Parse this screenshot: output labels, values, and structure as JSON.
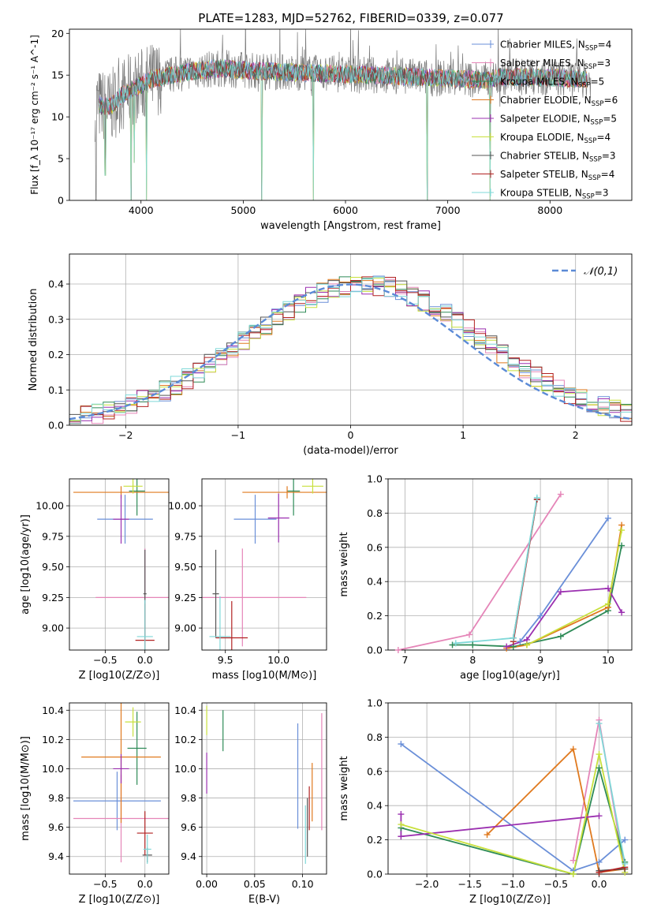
{
  "figure": {
    "title": "PLATE=1283, MJD=52762, FIBERID=0339, z=0.077"
  },
  "models": [
    {
      "name": "Chabrier MILES, N_SSP=4",
      "color": "#6a8fd8"
    },
    {
      "name": "Salpeter MILES, N_SSP=3",
      "color": "#e585b8"
    },
    {
      "name": "Kroupa MILES, N_SSP=5",
      "color": "#2e8b57"
    },
    {
      "name": "Chabrier ELODIE, N_SSP=6",
      "color": "#e07a1f"
    },
    {
      "name": "Salpeter ELODIE, N_SSP=5",
      "color": "#9b30b0"
    },
    {
      "name": "Kroupa ELODIE, N_SSP=4",
      "color": "#c8e03c"
    },
    {
      "name": "Chabrier STELIB, N_SSP=3",
      "color": "#555555"
    },
    {
      "name": "Salpeter STELIB, N_SSP=4",
      "color": "#b22222"
    },
    {
      "name": "Kroupa STELIB, N_SSP=3",
      "color": "#7fd8d8"
    }
  ],
  "chart_data": [
    {
      "id": "spectrum",
      "type": "line",
      "xlabel": "wavelength [Angstrom, rest frame]",
      "ylabel": "Flux [f_λ 10^-17 erg cm^-2 s^-1 A^-1]",
      "xlim": [
        3300,
        8800
      ],
      "ylim": [
        0,
        20.5
      ],
      "xticks": [
        4000,
        5000,
        6000,
        7000,
        8000
      ],
      "yticks": [
        0,
        5,
        10,
        15,
        20
      ],
      "legend": "top-right",
      "continuum": [
        [
          3550,
          11.5
        ],
        [
          3700,
          11.2
        ],
        [
          3800,
          12.5
        ],
        [
          3900,
          13.2
        ],
        [
          4000,
          13.8
        ],
        [
          4100,
          14.5
        ],
        [
          4300,
          15.0
        ],
        [
          4500,
          15.5
        ],
        [
          4800,
          15.8
        ],
        [
          5000,
          15.6
        ],
        [
          5500,
          15.3
        ],
        [
          6000,
          15.1
        ],
        [
          6500,
          14.9
        ],
        [
          7000,
          14.6
        ],
        [
          7400,
          14.4
        ],
        [
          7500,
          14.8
        ],
        [
          8000,
          14.7
        ],
        [
          8400,
          14.5
        ]
      ],
      "absorption_features": [
        [
          3560,
          0
        ],
        [
          3650,
          3.0
        ],
        [
          3905,
          0
        ],
        [
          3935,
          4.5
        ],
        [
          4055,
          0
        ],
        [
          5180,
          0
        ],
        [
          5685,
          0
        ],
        [
          6800,
          0
        ],
        [
          7415,
          0
        ]
      ]
    },
    {
      "id": "residuals",
      "type": "step",
      "xlabel": "(data-model)/error",
      "ylabel": "Normed distribution",
      "xlim": [
        -2.5,
        2.5
      ],
      "ylim": [
        0,
        0.485
      ],
      "xticks": [
        -2,
        -1,
        0,
        1,
        2
      ],
      "yticks": [
        0.0,
        0.1,
        0.2,
        0.3,
        0.4
      ],
      "legend_entry": "𝒩(0,1)",
      "bin_width": 0.1,
      "bin_start": -2.5
    },
    {
      "id": "age_vs_Z",
      "type": "errorbar",
      "xlabel": "Z [log10(Z/Z⊙)]",
      "ylabel": "age  [log10(age/yr)]",
      "xlim": [
        -0.95,
        0.3
      ],
      "ylim": [
        8.82,
        10.22
      ],
      "xticks": [
        -0.5,
        0.0
      ],
      "yticks": [
        9.0,
        9.25,
        9.5,
        9.75,
        10.0
      ],
      "points": [
        {
          "model": 0,
          "x": -0.25,
          "xerr": 0.35,
          "y": 9.89,
          "yerr": 0.2
        },
        {
          "model": 1,
          "x": 0.0,
          "xerr": 0.62,
          "y": 9.25,
          "yerr": 0.4
        },
        {
          "model": 2,
          "x": -0.1,
          "xerr": 0.1,
          "y": 10.12,
          "yerr": 0.2
        },
        {
          "model": 3,
          "x": -0.3,
          "xerr": 0.6,
          "y": 10.11,
          "yerr": 0.05
        },
        {
          "model": 4,
          "x": -0.3,
          "xerr": 0.1,
          "y": 9.89,
          "yerr": 0.2
        },
        {
          "model": 5,
          "x": -0.15,
          "xerr": 0.12,
          "y": 10.16,
          "yerr": 0.06
        },
        {
          "model": 6,
          "x": 0.0,
          "xerr": 0.02,
          "y": 9.28,
          "yerr": 0.36
        },
        {
          "model": 7,
          "x": 0.0,
          "xerr": 0.12,
          "y": 8.9,
          "yerr": 0.3
        },
        {
          "model": 8,
          "x": 0.0,
          "xerr": 0.1,
          "y": 8.93,
          "yerr": 0.3
        }
      ]
    },
    {
      "id": "age_vs_mass",
      "type": "errorbar",
      "xlabel": "mass [log10(M/M⊙)]",
      "ylabel": "",
      "xlim": [
        9.28,
        10.45
      ],
      "ylim": [
        8.82,
        10.22
      ],
      "xticks": [
        9.5,
        10.0
      ],
      "yticks": [
        9.0,
        9.25,
        9.5,
        9.75,
        10.0
      ],
      "points": [
        {
          "model": 0,
          "x": 9.78,
          "xerr": 0.2,
          "y": 9.89,
          "yerr": 0.2
        },
        {
          "model": 1,
          "x": 9.66,
          "xerr": 0.6,
          "y": 9.25,
          "yerr": 0.4
        },
        {
          "model": 2,
          "x": 10.14,
          "xerr": 0.06,
          "y": 10.12,
          "yerr": 0.2
        },
        {
          "model": 3,
          "x": 10.08,
          "xerr": 0.42,
          "y": 10.11,
          "yerr": 0.05
        },
        {
          "model": 4,
          "x": 10.0,
          "xerr": 0.1,
          "y": 9.9,
          "yerr": 0.2
        },
        {
          "model": 5,
          "x": 10.32,
          "xerr": 0.1,
          "y": 10.16,
          "yerr": 0.06
        },
        {
          "model": 6,
          "x": 9.41,
          "xerr": 0.03,
          "y": 9.28,
          "yerr": 0.36
        },
        {
          "model": 7,
          "x": 9.56,
          "xerr": 0.15,
          "y": 8.92,
          "yerr": 0.3
        },
        {
          "model": 8,
          "x": 9.45,
          "xerr": 0.1,
          "y": 8.93,
          "yerr": 0.33
        }
      ]
    },
    {
      "id": "weight_vs_age",
      "type": "line",
      "xlabel": "age  [log10(age/yr)]",
      "ylabel": "mass weight",
      "xlim": [
        6.75,
        10.35
      ],
      "ylim": [
        0,
        1.0
      ],
      "xticks": [
        7,
        8,
        9,
        10
      ],
      "yticks": [
        0.0,
        0.2,
        0.4,
        0.6,
        0.8,
        1.0
      ],
      "series": [
        {
          "model": 0,
          "x": [
            8.7,
            9.0,
            10.0
          ],
          "y": [
            0.05,
            0.2,
            0.77
          ]
        },
        {
          "model": 1,
          "x": [
            6.9,
            7.95,
            9.3
          ],
          "y": [
            0.0,
            0.09,
            0.91
          ]
        },
        {
          "model": 2,
          "x": [
            7.7,
            8.0,
            8.6,
            9.3,
            10.0,
            10.2
          ],
          "y": [
            0.03,
            0.03,
            0.02,
            0.08,
            0.23,
            0.61
          ]
        },
        {
          "model": 3,
          "x": [
            8.5,
            8.8,
            10.0,
            10.2
          ],
          "y": [
            0.01,
            0.03,
            0.25,
            0.73
          ]
        },
        {
          "model": 4,
          "x": [
            8.5,
            8.8,
            9.3,
            10.0,
            10.2
          ],
          "y": [
            0.02,
            0.06,
            0.34,
            0.36,
            0.22
          ]
        },
        {
          "model": 5,
          "x": [
            8.8,
            10.0,
            10.2
          ],
          "y": [
            0.03,
            0.27,
            0.7
          ]
        },
        {
          "model": 6,
          "x": [
            8.6,
            8.95
          ],
          "y": [
            0.07,
            0.88
          ]
        },
        {
          "model": 7,
          "x": [
            8.6,
            8.95
          ],
          "y": [
            0.05,
            0.88
          ]
        },
        {
          "model": 8,
          "x": [
            7.75,
            8.6,
            8.95
          ],
          "y": [
            0.04,
            0.07,
            0.89
          ]
        }
      ]
    },
    {
      "id": "mass_vs_Z",
      "type": "errorbar",
      "xlabel": "Z [log10(Z/Z⊙)]",
      "ylabel": "mass [log10(M/M⊙)]",
      "xlim": [
        -0.95,
        0.3
      ],
      "ylim": [
        9.28,
        10.45
      ],
      "xticks": [
        -0.5,
        0.0
      ],
      "yticks": [
        9.4,
        9.6,
        9.8,
        10.0,
        10.2,
        10.4
      ],
      "points": [
        {
          "model": 0,
          "x": -0.35,
          "xerr": 0.55,
          "y": 9.78,
          "yerr": 0.2
        },
        {
          "model": 1,
          "x": -0.3,
          "xerr": 0.6,
          "y": 9.66,
          "yerr": 0.3
        },
        {
          "model": 2,
          "x": -0.1,
          "xerr": 0.12,
          "y": 10.14,
          "yerr": 0.25
        },
        {
          "model": 3,
          "x": -0.3,
          "xerr": 0.5,
          "y": 10.08,
          "yerr": 0.45
        },
        {
          "model": 4,
          "x": -0.3,
          "xerr": 0.1,
          "y": 10.0,
          "yerr": 0.1
        },
        {
          "model": 5,
          "x": -0.15,
          "xerr": 0.1,
          "y": 10.32,
          "yerr": 0.1
        },
        {
          "model": 6,
          "x": 0.03,
          "xerr": 0.06,
          "y": 9.41,
          "yerr": 0.05
        },
        {
          "model": 7,
          "x": 0.0,
          "xerr": 0.1,
          "y": 9.56,
          "yerr": 0.15
        },
        {
          "model": 8,
          "x": 0.03,
          "xerr": 0.05,
          "y": 9.45,
          "yerr": 0.1
        }
      ]
    },
    {
      "id": "mass_vs_ebv",
      "type": "errorbar",
      "xlabel": "E(B-V)",
      "ylabel": "",
      "xlim": [
        -0.005,
        0.125
      ],
      "ylim": [
        9.28,
        10.45
      ],
      "xticks": [
        0.0,
        0.05,
        0.1
      ],
      "yticks": [
        9.4,
        9.6,
        9.8,
        10.0,
        10.2,
        10.4
      ],
      "points": [
        {
          "model": 0,
          "x": 0.095,
          "xerr": 0,
          "y": 9.95,
          "yerr": 0.36
        },
        {
          "model": 1,
          "x": 0.12,
          "xerr": 0,
          "y": 9.98,
          "yerr": 0.4
        },
        {
          "model": 2,
          "x": 0.017,
          "xerr": 0,
          "y": 10.26,
          "yerr": 0.14
        },
        {
          "model": 3,
          "x": 0.11,
          "xerr": 0,
          "y": 9.84,
          "yerr": 0.2
        },
        {
          "model": 4,
          "x": 0.0,
          "xerr": 0,
          "y": 9.97,
          "yerr": 0.14
        },
        {
          "model": 5,
          "x": 0.0,
          "xerr": 0,
          "y": 10.33,
          "yerr": 0.1
        },
        {
          "model": 6,
          "x": 0.105,
          "xerr": 0,
          "y": 9.6,
          "yerr": 0.2
        },
        {
          "model": 7,
          "x": 0.107,
          "xerr": 0,
          "y": 9.73,
          "yerr": 0.15
        },
        {
          "model": 8,
          "x": 0.103,
          "xerr": 0,
          "y": 9.55,
          "yerr": 0.2
        }
      ]
    },
    {
      "id": "weight_vs_Z",
      "type": "line",
      "xlabel": "Z [log10(Z/Z⊙)]",
      "ylabel": "mass weight",
      "xlim": [
        -2.45,
        0.38
      ],
      "ylim": [
        0,
        1.0
      ],
      "xticks": [
        -2.0,
        -1.5,
        -1.0,
        -0.5,
        0.0
      ],
      "yticks": [
        0.0,
        0.2,
        0.4,
        0.6,
        0.8,
        1.0
      ],
      "series": [
        {
          "model": 0,
          "x": [
            -2.3,
            -0.3,
            0.0,
            0.3
          ],
          "y": [
            0.76,
            0.02,
            0.07,
            0.2
          ]
        },
        {
          "model": 1,
          "x": [
            -0.3,
            0.0,
            0.3
          ],
          "y": [
            0.08,
            0.9,
            0.01
          ]
        },
        {
          "model": 2,
          "x": [
            -2.3,
            -0.3,
            0.0,
            0.3
          ],
          "y": [
            0.27,
            0.0,
            0.62,
            0.07
          ]
        },
        {
          "model": 3,
          "x": [
            -1.3,
            -0.3,
            0.0,
            0.3
          ],
          "y": [
            0.23,
            0.73,
            0.01,
            0.03
          ]
        },
        {
          "model": 4,
          "x": [
            -2.3,
            -2.3,
            0.0
          ],
          "y": [
            0.35,
            0.22,
            0.34
          ]
        },
        {
          "model": 5,
          "x": [
            -2.3,
            -0.3,
            0.0,
            0.3
          ],
          "y": [
            0.29,
            0.0,
            0.7,
            0.01
          ]
        },
        {
          "model": 6,
          "x": [
            0.0,
            0.3
          ],
          "y": [
            0.02,
            0.03
          ]
        },
        {
          "model": 7,
          "x": [
            0.0,
            0.3
          ],
          "y": [
            0.01,
            0.04
          ]
        },
        {
          "model": 8,
          "x": [
            0.0,
            0.3
          ],
          "y": [
            0.88,
            0.06
          ]
        }
      ]
    }
  ]
}
